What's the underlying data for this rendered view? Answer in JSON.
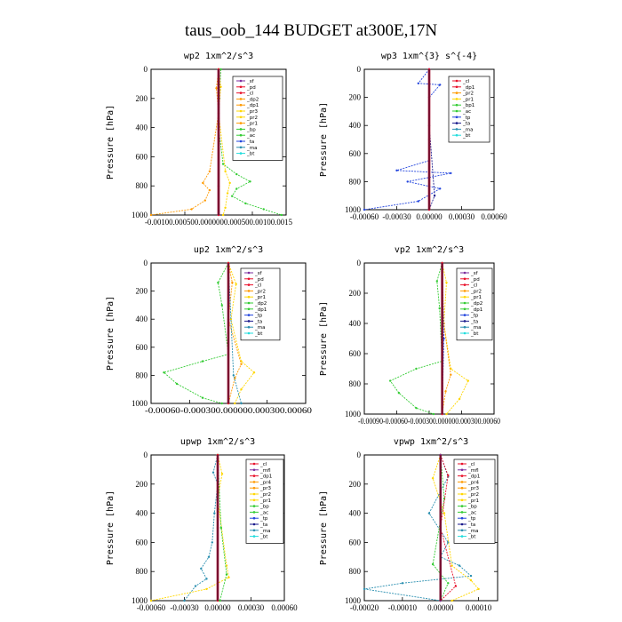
{
  "figure": {
    "title": "taus_oob_144  BUDGET at300E,17N"
  },
  "colors": {
    "red": "#e8102a",
    "purple": "#7b2d9e",
    "orange": "#ff9a00",
    "yellow": "#ffd700",
    "green": "#33cc33",
    "blue": "#2244dd",
    "darkblue": "#1a1a8c",
    "teal": "#2a8fb0",
    "cyan": "#22dddd",
    "maroon": "#7a1030",
    "black": "#000000"
  },
  "chart_data": [
    {
      "type": "line",
      "title": "wp2  1xm^2/s^3",
      "ylabel": "Pressure [hPa]",
      "xlim": [
        -0.0015,
        0.0015
      ],
      "ylim": [
        1000,
        0
      ],
      "xtick_text": "-0.00100.000500.0000000.000500.00100.0015",
      "yticks": [
        "0",
        "200",
        "400",
        "600",
        "800",
        "1000"
      ],
      "legend": [
        "_sf",
        "_pd",
        "_cl",
        "_dp2",
        "_dp1",
        "_pr3",
        "_pr2",
        "_pr1",
        "_bp",
        "_ac",
        "_ta",
        "_ma",
        "_bt"
      ],
      "legend_colors": [
        "purple",
        "red",
        "red",
        "orange",
        "orange",
        "yellow",
        "yellow",
        "orange",
        "green",
        "green",
        "blue",
        "teal",
        "cyan"
      ],
      "series": [
        {
          "color": "green",
          "x": [
            5e-05,
            2e-05,
            0,
            0.0001,
            0.0004,
            0.0007,
            0.0004,
            0.0003,
            0.0006,
            0.001,
            0.0014
          ],
          "y": [
            0,
            200,
            400,
            650,
            720,
            770,
            820,
            870,
            920,
            960,
            1000
          ]
        },
        {
          "color": "orange",
          "x": [
            0,
            -5e-05,
            0,
            -0.0002,
            -0.00035,
            -0.0002,
            -0.0003,
            -0.0006,
            -0.0015
          ],
          "y": [
            0,
            130,
            300,
            700,
            780,
            830,
            900,
            960,
            1000
          ]
        },
        {
          "color": "yellow",
          "x": [
            0,
            5e-05,
            0,
            0.00015,
            0.00025,
            0.0002,
            0.00015,
            0.0001
          ],
          "y": [
            0,
            120,
            300,
            700,
            780,
            850,
            950,
            1000
          ]
        },
        {
          "color": "purple",
          "x": [
            0,
            0,
            0,
            0
          ],
          "y": [
            0,
            400,
            800,
            1000
          ]
        },
        {
          "color": "red",
          "x": [
            0,
            0,
            0,
            0
          ],
          "y": [
            0,
            400,
            800,
            1000
          ]
        }
      ]
    },
    {
      "type": "line",
      "title": "wp3  1xm^{3} s^{-4}",
      "ylabel": "Pressure [hPa]",
      "xlim": [
        -0.0006,
        0.0006
      ],
      "ylim": [
        1000,
        0
      ],
      "xticks": [
        "-0.00060",
        "-0.00030",
        "0.00000",
        "0.00030",
        "0.00060"
      ],
      "yticks": [
        "0",
        "200",
        "400",
        "600",
        "800",
        "1000"
      ],
      "legend": [
        "_cl",
        "_dp1",
        "_pr2",
        "_pr1",
        "_bp1",
        "_ac",
        "_tp",
        "_ta",
        "_ma",
        "_bt"
      ],
      "legend_colors": [
        "red",
        "red",
        "orange",
        "yellow",
        "green",
        "green",
        "blue",
        "darkblue",
        "teal",
        "cyan"
      ],
      "series": [
        {
          "color": "blue",
          "x": [
            0,
            -0.0001,
            0.0001,
            0,
            0,
            -0.0003,
            0.0002,
            -0.0002,
            0.0001,
            -0.0001,
            -0.0006
          ],
          "y": [
            0,
            100,
            110,
            200,
            650,
            720,
            740,
            800,
            850,
            940,
            1000
          ]
        },
        {
          "color": "darkblue",
          "x": [
            0,
            0,
            5e-05,
            0
          ],
          "y": [
            0,
            400,
            900,
            1000
          ]
        },
        {
          "color": "red",
          "x": [
            0,
            0,
            0
          ],
          "y": [
            0,
            500,
            1000
          ]
        }
      ]
    },
    {
      "type": "line",
      "title": "up2  1xm^2/s^3",
      "ylabel": "Pressure [hPa]",
      "xlim": [
        -0.0006,
        0.0006
      ],
      "ylim": [
        1000,
        0
      ],
      "xtick_text": "-0.00060-0.000300.000000.000300.00060",
      "yticks": [
        "0",
        "200",
        "400",
        "600",
        "800",
        "1000"
      ],
      "legend": [
        "_sf",
        "_pd",
        "_cl",
        "_pr2",
        "_pr1",
        "_dp2",
        "_dp1",
        "_tp",
        "_ta",
        "_ma",
        "_bt"
      ],
      "legend_colors": [
        "purple",
        "red",
        "red",
        "orange",
        "yellow",
        "green",
        "green",
        "blue",
        "darkblue",
        "teal",
        "cyan"
      ],
      "series": [
        {
          "color": "green",
          "x": [
            0,
            -8e-05,
            -5e-05,
            0,
            -0.0002,
            -0.0005,
            -0.0004,
            -0.0002,
            -5e-05
          ],
          "y": [
            0,
            140,
            300,
            650,
            700,
            780,
            860,
            960,
            1000
          ]
        },
        {
          "color": "yellow",
          "x": [
            0,
            6e-05,
            2e-05,
            0.0001,
            0.0002,
            0.0001,
            5e-05
          ],
          "y": [
            0,
            150,
            400,
            700,
            780,
            900,
            1000
          ]
        },
        {
          "color": "orange",
          "x": [
            0,
            3e-05,
            0,
            0.0001,
            5e-05,
            0
          ],
          "y": [
            0,
            140,
            400,
            720,
            820,
            1000
          ]
        },
        {
          "color": "teal",
          "x": [
            0,
            4e-05,
            0.0001
          ],
          "y": [
            0,
            800,
            1000
          ]
        },
        {
          "color": "red",
          "x": [
            0,
            0,
            0
          ],
          "y": [
            0,
            500,
            1000
          ]
        }
      ]
    },
    {
      "type": "line",
      "title": "vp2  1xm^2/s^3",
      "ylabel": "Pressure [hPa]",
      "xlim": [
        -0.0009,
        0.0006
      ],
      "ylim": [
        1000,
        0
      ],
      "xtick_text": "-0.00090-0.00060-0.000300.000000.000300.00060",
      "yticks": [
        "0",
        "200",
        "400",
        "600",
        "800",
        "1000"
      ],
      "legend": [
        "_sf",
        "_pd",
        "_cl",
        "_pr2",
        "_pr1",
        "_dp2",
        "_dp1",
        "_tp",
        "_ta",
        "_ma",
        "_bt"
      ],
      "legend_colors": [
        "purple",
        "red",
        "red",
        "orange",
        "yellow",
        "green",
        "green",
        "blue",
        "darkblue",
        "teal",
        "cyan"
      ],
      "series": [
        {
          "color": "green",
          "x": [
            0,
            -6e-05,
            -3e-05,
            0,
            -0.0003,
            -0.0006,
            -0.0005,
            -0.0003,
            -0.0001
          ],
          "y": [
            0,
            120,
            300,
            650,
            700,
            780,
            860,
            960,
            1000
          ]
        },
        {
          "color": "yellow",
          "x": [
            0,
            5e-05,
            2e-05,
            0.0001,
            0.0003,
            0.0002,
            5e-05
          ],
          "y": [
            0,
            130,
            400,
            700,
            780,
            900,
            1000
          ]
        },
        {
          "color": "orange",
          "x": [
            0,
            2e-05,
            0.0001,
            4e-05,
            0
          ],
          "y": [
            0,
            400,
            740,
            850,
            1000
          ]
        },
        {
          "color": "blue",
          "x": [
            0,
            2e-05,
            0
          ],
          "y": [
            0,
            500,
            1000
          ]
        },
        {
          "color": "red",
          "x": [
            0,
            0,
            0
          ],
          "y": [
            0,
            500,
            1000
          ]
        }
      ]
    },
    {
      "type": "line",
      "title": "upwp  1xm^2/s^3",
      "ylabel": "Pressure [hPa]",
      "xlim": [
        -0.0006,
        0.0006
      ],
      "ylim": [
        1000,
        0
      ],
      "xticks": [
        "-0.00060",
        "-0.00030",
        "0.00000",
        "0.00030",
        "0.00060"
      ],
      "yticks": [
        "0",
        "200",
        "400",
        "600",
        "800",
        "1000"
      ],
      "legend": [
        "_cl",
        "_mfl",
        "_dp1",
        "_pr4",
        "_pr3",
        "_pr2",
        "_pr1",
        "_bp",
        "_ac",
        "_tp",
        "_ta",
        "_ma",
        "_bt"
      ],
      "legend_colors": [
        "red",
        "purple",
        "red",
        "orange",
        "orange",
        "yellow",
        "yellow",
        "green",
        "green",
        "blue",
        "darkblue",
        "teal",
        "cyan"
      ],
      "series": [
        {
          "color": "teal",
          "x": [
            0,
            -4e-05,
            0,
            -3e-05,
            -5e-05,
            -8e-05,
            -0.00015,
            -0.0001,
            -0.0002,
            -0.0003
          ],
          "y": [
            0,
            120,
            200,
            400,
            600,
            700,
            780,
            850,
            900,
            1000
          ]
        },
        {
          "color": "yellow",
          "x": [
            0,
            4e-05,
            0,
            8e-05,
            0.0001,
            -0.0001,
            -0.0006
          ],
          "y": [
            0,
            130,
            300,
            760,
            840,
            920,
            1000
          ]
        },
        {
          "color": "green",
          "x": [
            0,
            3e-05,
            8e-05,
            2e-05
          ],
          "y": [
            0,
            500,
            820,
            1000
          ]
        },
        {
          "color": "red",
          "x": [
            0,
            0,
            0
          ],
          "y": [
            0,
            500,
            1000
          ]
        }
      ]
    },
    {
      "type": "line",
      "title": "vpwp  1xm^2/s^3",
      "ylabel": "Pressure [hPa]",
      "xlim": [
        -0.0002,
        0.00015
      ],
      "ylim": [
        1000,
        0
      ],
      "xticks": [
        "-0.00020",
        "-0.00010",
        "0.00000",
        "0.00010"
      ],
      "yticks": [
        "0",
        "200",
        "400",
        "600",
        "800",
        "1000"
      ],
      "legend": [
        "_cl",
        "_mfl",
        "_dp1",
        "_pr4",
        "_pr3",
        "_pr2",
        "_pr1",
        "_bp",
        "_ac",
        "_tp",
        "_ta",
        "_ma",
        "_bt"
      ],
      "legend_colors": [
        "red",
        "purple",
        "red",
        "orange",
        "orange",
        "yellow",
        "yellow",
        "green",
        "green",
        "blue",
        "darkblue",
        "teal",
        "cyan"
      ],
      "series": [
        {
          "color": "teal",
          "x": [
            0,
            2e-05,
            -3e-05,
            2e-05,
            0,
            5e-05,
            8e-05,
            -0.0001,
            -0.0002,
            0
          ],
          "y": [
            0,
            150,
            400,
            600,
            700,
            760,
            830,
            880,
            920,
            1000
          ]
        },
        {
          "color": "yellow",
          "x": [
            0,
            -2e-05,
            1e-05,
            3e-05,
            8e-05,
            0.0001,
            3e-05
          ],
          "y": [
            0,
            160,
            400,
            760,
            860,
            920,
            1000
          ]
        },
        {
          "color": "green",
          "x": [
            0,
            1e-05,
            -2e-05,
            2e-05,
            0
          ],
          "y": [
            0,
            300,
            750,
            880,
            1000
          ]
        },
        {
          "color": "red",
          "x": [
            0,
            2e-05,
            0,
            4e-05,
            0
          ],
          "y": [
            0,
            140,
            500,
            900,
            1000
          ]
        },
        {
          "color": "purple",
          "x": [
            0,
            0,
            0
          ],
          "y": [
            0,
            500,
            1000
          ]
        }
      ]
    }
  ]
}
